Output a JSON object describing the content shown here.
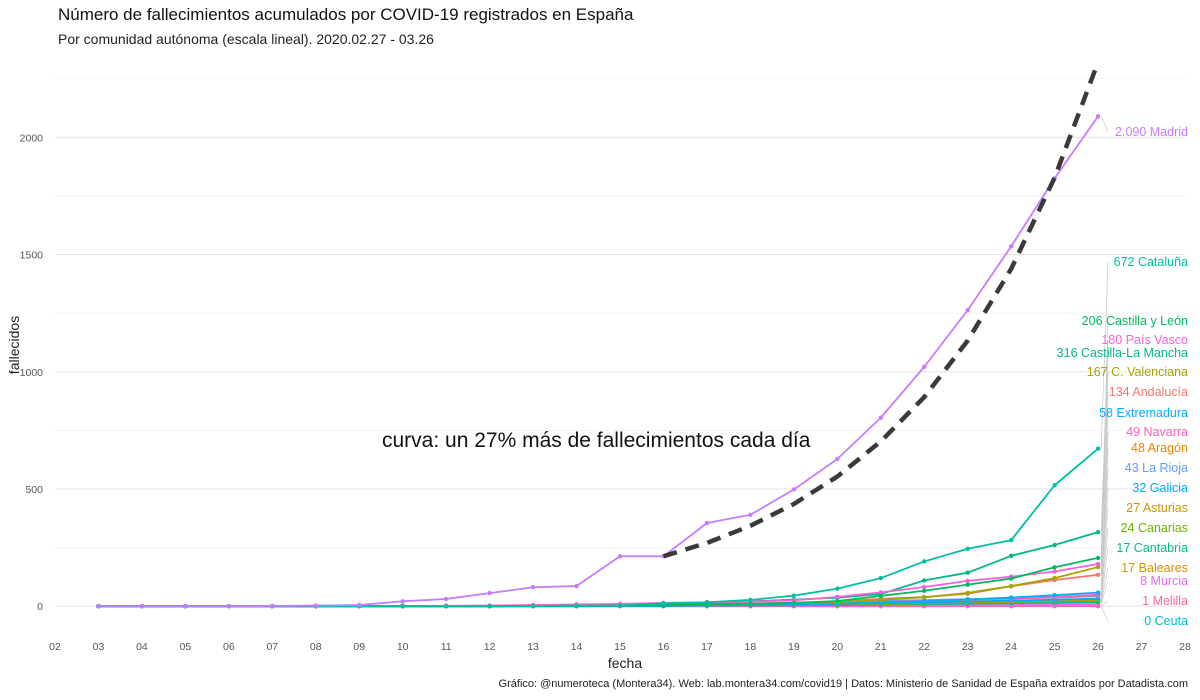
{
  "title": "Número de fallecimientos acumulados por COVID-19 registrados en España",
  "subtitle": "Por comunidad autónoma (escala lineal). 2020.02.27 - 03.26",
  "caption": "Gráfico: @numeroteca (Montera34). Web: lab.montera34.com/covid19 | Datos: Ministerio de Sanidad de España extraídos por Datadista.com",
  "chart_data": {
    "type": "line",
    "xlabel": "fecha",
    "ylabel": "fallecidos",
    "x_ticks": [
      "02",
      "03",
      "04",
      "05",
      "06",
      "07",
      "08",
      "09",
      "10",
      "11",
      "12",
      "13",
      "14",
      "15",
      "16",
      "17",
      "18",
      "19",
      "20",
      "21",
      "22",
      "23",
      "24",
      "25",
      "26",
      "27",
      "28"
    ],
    "xlim": [
      2,
      28
    ],
    "ylim": [
      -110,
      2330
    ],
    "y_ticks": [
      0,
      500,
      1000,
      1500,
      2000
    ],
    "grid": true,
    "x": [
      3,
      4,
      5,
      6,
      7,
      8,
      9,
      10,
      11,
      12,
      13,
      14,
      15,
      16,
      17,
      18,
      19,
      20,
      21,
      22,
      23,
      24,
      25,
      26
    ],
    "annotation": "curva: un 27% más de fallecimientos cada día",
    "trend_line": {
      "color": "#3a3a3a",
      "x": [
        16,
        17,
        18,
        19,
        20,
        21,
        22,
        23,
        24,
        25,
        26
      ],
      "values": [
        213,
        270,
        343,
        436,
        553,
        703,
        892,
        1133,
        1439,
        1828,
        2321
      ]
    },
    "series": [
      {
        "name": "Madrid",
        "label": "2.090 Madrid",
        "color": "#C77CFF",
        "values": [
          0,
          0,
          0,
          0,
          1,
          3,
          5,
          21,
          31,
          56,
          81,
          86,
          213,
          213,
          355,
          390,
          498,
          628,
          804,
          1021,
          1263,
          1535,
          1825,
          2090
        ]
      },
      {
        "name": "Cataluña",
        "label": "672 Cataluña",
        "color": "#00BFA4",
        "values": [
          0,
          0,
          0,
          0,
          0,
          0,
          0,
          0,
          0,
          0,
          1,
          3,
          3,
          12,
          17,
          27,
          45,
          75,
          120,
          191,
          245,
          282,
          516,
          672
        ]
      },
      {
        "name": "Castilla y León",
        "label": "206 Castilla y León",
        "color": "#00BA62",
        "values": [
          0,
          0,
          0,
          0,
          0,
          0,
          0,
          0,
          0,
          0,
          1,
          1,
          3,
          5,
          6,
          9,
          14,
          22,
          44,
          66,
          92,
          118,
          166,
          206
        ]
      },
      {
        "name": "País Vasco",
        "label": "180 País Vasco",
        "color": "#FB61D7",
        "values": [
          0,
          0,
          0,
          0,
          0,
          0,
          0,
          1,
          2,
          3,
          5,
          8,
          10,
          14,
          17,
          20,
          25,
          40,
          59,
          82,
          108,
          126,
          148,
          180
        ]
      },
      {
        "name": "Castilla-La Mancha",
        "label": "316 Castilla-La Mancha",
        "color": "#00B88A",
        "values": [
          0,
          0,
          0,
          0,
          0,
          0,
          0,
          0,
          0,
          0,
          1,
          1,
          4,
          8,
          10,
          21,
          28,
          36,
          52,
          110,
          143,
          215,
          261,
          316
        ]
      },
      {
        "name": "C. Valenciana",
        "label": "167 C. Valenciana",
        "color": "#A3A500",
        "values": [
          0,
          0,
          0,
          0,
          0,
          0,
          0,
          0,
          0,
          1,
          1,
          2,
          4,
          5,
          8,
          10,
          14,
          18,
          27,
          38,
          57,
          86,
          120,
          167
        ]
      },
      {
        "name": "Andalucía",
        "label": "134 Andalucía",
        "color": "#F8766D",
        "values": [
          0,
          0,
          0,
          0,
          0,
          0,
          0,
          0,
          0,
          1,
          2,
          3,
          4,
          6,
          8,
          11,
          15,
          20,
          32,
          39,
          53,
          85,
          112,
          134
        ]
      },
      {
        "name": "Extremadura",
        "label": "58 Extremadura",
        "color": "#00B0F6",
        "values": [
          0,
          0,
          0,
          0,
          0,
          0,
          0,
          0,
          0,
          0,
          0,
          1,
          2,
          3,
          4,
          6,
          8,
          12,
          16,
          21,
          29,
          37,
          47,
          58
        ]
      },
      {
        "name": "Navarra",
        "label": "49 Navarra",
        "color": "#FF62BC",
        "values": [
          0,
          0,
          0,
          0,
          0,
          0,
          0,
          0,
          1,
          2,
          2,
          2,
          3,
          4,
          5,
          6,
          9,
          12,
          17,
          22,
          28,
          33,
          39,
          49
        ]
      },
      {
        "name": "Aragón",
        "label": "48 Aragón",
        "color": "#E58700",
        "values": [
          0,
          0,
          0,
          0,
          0,
          0,
          0,
          0,
          0,
          0,
          1,
          1,
          2,
          3,
          4,
          6,
          9,
          12,
          17,
          21,
          27,
          33,
          38,
          48
        ]
      },
      {
        "name": "La Rioja",
        "label": "43 La Rioja",
        "color": "#619CFF",
        "values": [
          0,
          0,
          0,
          0,
          0,
          0,
          1,
          1,
          1,
          2,
          3,
          3,
          5,
          8,
          10,
          12,
          15,
          18,
          22,
          26,
          30,
          33,
          37,
          43
        ]
      },
      {
        "name": "Galicia",
        "label": "32 Galicia",
        "color": "#00A9FF",
        "values": [
          0,
          0,
          0,
          0,
          0,
          0,
          0,
          0,
          0,
          0,
          0,
          1,
          1,
          1,
          3,
          5,
          7,
          10,
          13,
          17,
          20,
          24,
          28,
          32
        ]
      },
      {
        "name": "Asturias",
        "label": "27 Asturias",
        "color": "#C99800",
        "values": [
          0,
          0,
          0,
          0,
          0,
          0,
          0,
          0,
          0,
          0,
          1,
          1,
          2,
          3,
          4,
          5,
          7,
          9,
          12,
          15,
          18,
          21,
          24,
          27
        ]
      },
      {
        "name": "Canarias",
        "label": "24 Canarias",
        "color": "#6BB100",
        "values": [
          0,
          0,
          0,
          0,
          0,
          0,
          0,
          0,
          0,
          0,
          1,
          1,
          1,
          2,
          3,
          4,
          5,
          7,
          9,
          12,
          15,
          18,
          21,
          24
        ]
      },
      {
        "name": "Cantabria",
        "label": "17 Cantabria",
        "color": "#00C08B",
        "values": [
          0,
          0,
          0,
          0,
          0,
          0,
          0,
          0,
          0,
          0,
          0,
          0,
          1,
          1,
          2,
          3,
          4,
          5,
          7,
          9,
          11,
          13,
          15,
          17
        ]
      },
      {
        "name": "Baleares",
        "label": "17 Baleares",
        "color": "#D89000",
        "values": [
          0,
          0,
          0,
          0,
          0,
          0,
          0,
          0,
          0,
          1,
          1,
          1,
          2,
          2,
          3,
          4,
          5,
          6,
          8,
          10,
          11,
          13,
          15,
          17
        ]
      },
      {
        "name": "Murcia",
        "label": "8 Murcia",
        "color": "#E76BF3",
        "values": [
          0,
          0,
          0,
          0,
          0,
          0,
          0,
          0,
          0,
          0,
          0,
          0,
          0,
          0,
          1,
          1,
          2,
          2,
          3,
          4,
          5,
          6,
          7,
          8
        ]
      },
      {
        "name": "Melilla",
        "label": "1 Melilla",
        "color": "#FF67A4",
        "values": [
          0,
          0,
          0,
          0,
          0,
          0,
          0,
          0,
          0,
          0,
          0,
          0,
          0,
          0,
          0,
          0,
          0,
          0,
          0,
          0,
          1,
          1,
          1,
          1
        ]
      },
      {
        "name": "Ceuta",
        "label": "0 Ceuta",
        "color": "#00BCD8",
        "values": [
          0,
          0,
          0,
          0,
          0,
          0,
          0,
          0,
          0,
          0,
          0,
          0,
          0,
          0,
          0,
          0,
          0,
          0,
          0,
          0,
          0,
          0,
          0,
          0
        ]
      }
    ]
  }
}
